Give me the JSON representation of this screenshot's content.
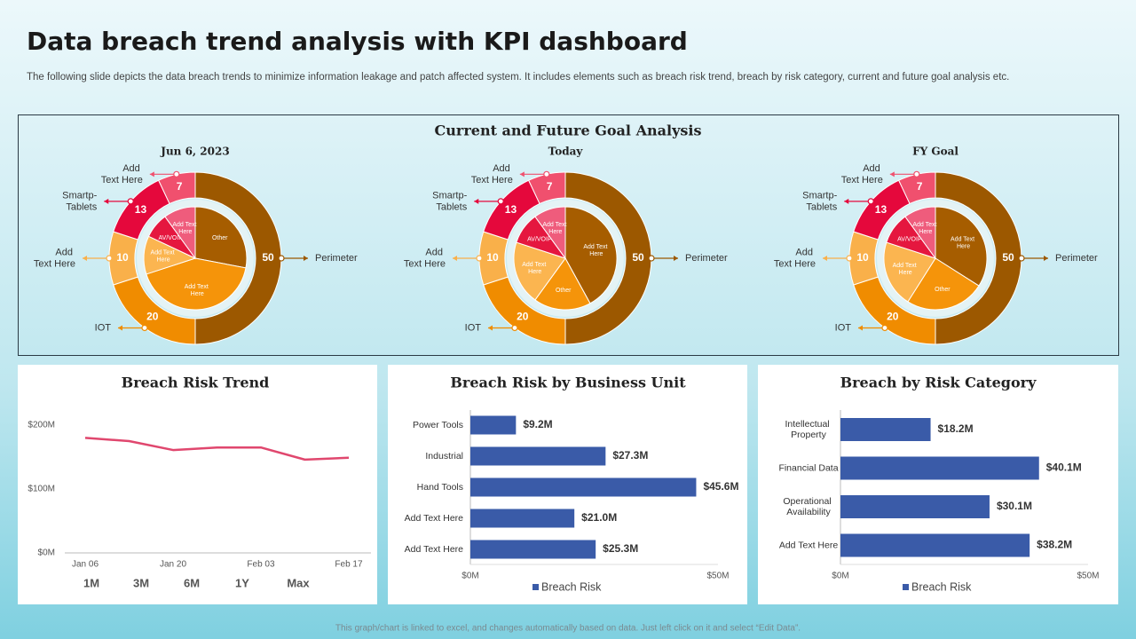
{
  "title": "Data breach trend analysis with KPI dashboard",
  "description": "The following slide depicts the data breach trends to minimize information leakage and patch affected system. It includes elements such as breach risk trend, breach by risk category, current and future goal analysis etc.",
  "goal_panel_title": "Current and Future Goal Analysis",
  "footer": "This graph/chart is linked to excel, and changes automatically based on data. Just left click on it and select “Edit Data”.",
  "chart_data": [
    {
      "type": "donut",
      "title": "Jun 6, 2023",
      "categories": [
        "Perimeter",
        "IOT",
        "Add Text Here",
        "Smartp-Tablets",
        "Add Text Here"
      ],
      "values": [
        50,
        20,
        10,
        13,
        7
      ],
      "colors": [
        "#9c5800",
        "#f08c00",
        "#f9b04a",
        "#e5083c",
        "#f0506e"
      ],
      "inner": {
        "categories": [
          "Other",
          "Add Text Here",
          "Add Text Here",
          "AV/VOIP",
          "Add Text Here"
        ],
        "values": [
          28,
          42,
          12,
          8,
          10
        ],
        "colors": [
          "#a65d00",
          "#f5940a",
          "#fbb550",
          "#e5173f",
          "#ef5c7c"
        ]
      }
    },
    {
      "type": "donut",
      "title": "Today",
      "categories": [
        "Perimeter",
        "IOT",
        "Add Text Here",
        "Smartp-Tablets",
        "Add Text Here"
      ],
      "values": [
        50,
        20,
        10,
        13,
        7
      ],
      "colors": [
        "#9c5800",
        "#f08c00",
        "#f9b04a",
        "#e5083c",
        "#f0506e"
      ],
      "inner": {
        "categories": [
          "Add Text Here",
          "Other",
          "Add Text Here",
          "AV/VOIP",
          "Add Text Here"
        ],
        "values": [
          42,
          18,
          20,
          10,
          10
        ],
        "colors": [
          "#a65d00",
          "#f5940a",
          "#fbb550",
          "#e5173f",
          "#ef5c7c"
        ]
      }
    },
    {
      "type": "donut",
      "title": "FY Goal",
      "categories": [
        "Perimeter",
        "IOT",
        "Add Text Here",
        "Smartp-Tablets",
        "Add Text Here"
      ],
      "values": [
        50,
        20,
        10,
        13,
        7
      ],
      "colors": [
        "#9c5800",
        "#f08c00",
        "#f9b04a",
        "#e5083c",
        "#f0506e"
      ],
      "inner": {
        "categories": [
          "Add Text Here",
          "Other",
          "Add Text Here",
          "AV/VOIP",
          "Add Text Here"
        ],
        "values": [
          34,
          25,
          21,
          10,
          10
        ],
        "colors": [
          "#a65d00",
          "#f5940a",
          "#fbb550",
          "#e5173f",
          "#ef5c7c"
        ]
      }
    },
    {
      "type": "line",
      "title": "Breach Risk Trend",
      "categories": [
        "Jan 06",
        null,
        "Jan 20",
        null,
        "Feb 03",
        null,
        "Feb 17"
      ],
      "values": [
        180,
        175,
        161,
        165,
        165,
        146,
        149
      ],
      "color": "#e0476e",
      "ylim": [
        0,
        200
      ],
      "yticks": [
        {
          "value": 0,
          "label": "$0M"
        },
        {
          "value": 100,
          "label": "$100M"
        },
        {
          "value": 200,
          "label": "$200M"
        }
      ],
      "range_buttons": [
        "1M",
        "3M",
        "6M",
        "1Y",
        "Max"
      ]
    },
    {
      "type": "hbar",
      "title": "Breach Risk by Business Unit",
      "categories": [
        "Power Tools",
        "Industrial",
        "Hand Tools",
        "Add Text Here",
        "Add Text Here"
      ],
      "series": [
        {
          "name": "Breach Risk",
          "color": "#3a5ba8",
          "values": [
            9.2,
            27.3,
            45.6,
            21.0,
            25.3
          ],
          "value_labels": [
            "$9.2M",
            "$27.3M",
            "$45.6M",
            "$21.0M",
            "$25.3M"
          ]
        }
      ],
      "xlim": [
        0,
        50
      ],
      "xticks": [
        {
          "value": 0,
          "label": "$0M"
        },
        {
          "value": 50,
          "label": "$50M"
        }
      ]
    },
    {
      "type": "hbar",
      "title": "Breach by Risk Category",
      "categories": [
        "Intellectual Property",
        "Financial Data",
        "Operational Availability",
        "Add Text Here"
      ],
      "series": [
        {
          "name": "Breach Risk",
          "color": "#3a5ba8",
          "values": [
            18.2,
            40.1,
            30.1,
            38.2
          ],
          "value_labels": [
            "$18.2M",
            "$40.1M",
            "$30.1M",
            "$38.2M"
          ]
        }
      ],
      "xlim": [
        0,
        50
      ],
      "xticks": [
        {
          "value": 0,
          "label": "$0M"
        },
        {
          "value": 50,
          "label": "$50M"
        }
      ]
    }
  ]
}
